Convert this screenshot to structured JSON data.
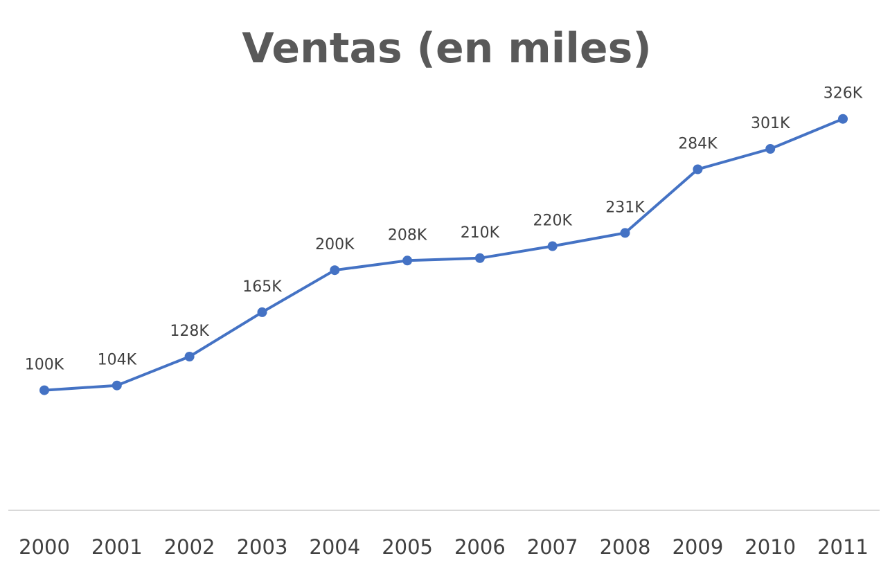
{
  "chart_data": {
    "type": "line",
    "title": "Ventas (en miles)",
    "xlabel": "",
    "ylabel": "",
    "categories": [
      "2000",
      "2001",
      "2002",
      "2003",
      "2004",
      "2005",
      "2006",
      "2007",
      "2008",
      "2009",
      "2010",
      "2011"
    ],
    "series": [
      {
        "values": [
          100,
          104,
          128,
          165,
          200,
          208,
          210,
          220,
          231,
          284,
          301,
          326
        ],
        "labels": [
          "100K",
          "104K",
          "128K",
          "165K",
          "200K",
          "208K",
          "210K",
          "220K",
          "231K",
          "284K",
          "301K",
          "326K"
        ],
        "color": "#4472C4"
      }
    ],
    "ylim": [
      0,
      425
    ],
    "grid": false,
    "legend": "none"
  },
  "colors": {
    "title": "#595959",
    "labels": "#404040",
    "axis_line": "#d9d9d9",
    "series": "#4472C4"
  }
}
